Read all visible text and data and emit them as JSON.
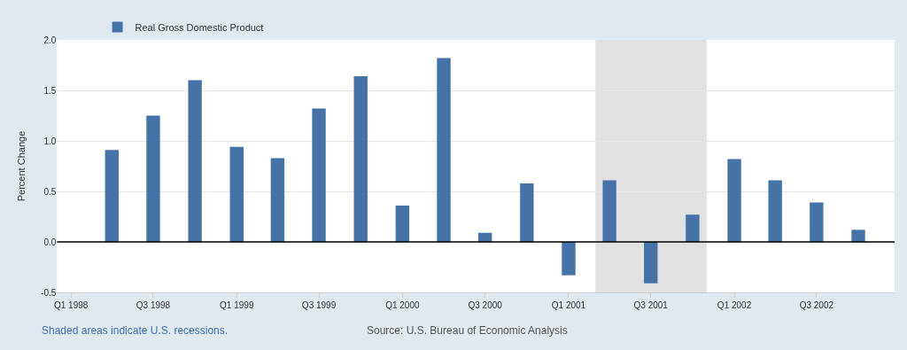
{
  "chart_data": {
    "type": "bar",
    "ylabel": "Percent Change",
    "x": [
      "1998-04-01",
      "1998-07-01",
      "1998-10-01",
      "1999-01-01",
      "1999-04-01",
      "1999-07-01",
      "1999-10-01",
      "2000-01-01",
      "2000-04-01",
      "2000-07-01",
      "2000-10-01",
      "2001-01-01",
      "2001-04-01",
      "2001-07-01",
      "2001-10-01",
      "2002-01-01",
      "2002-04-01",
      "2002-07-01",
      "2002-10-01"
    ],
    "series": [
      {
        "name": "Real Gross Domestic Product",
        "color": "#4572a7",
        "values": [
          0.91,
          1.25,
          1.6,
          0.94,
          0.83,
          1.32,
          1.64,
          0.36,
          1.82,
          0.09,
          0.58,
          -0.33,
          0.61,
          -0.41,
          0.27,
          0.82,
          0.61,
          0.39,
          0.12
        ]
      }
    ],
    "xlim": [
      "1997-12-01",
      "2002-12-20"
    ],
    "xticks": [
      {
        "value": "1998-01-01",
        "label": "Q1 1998"
      },
      {
        "value": "1998-07-01",
        "label": "Q3 1998"
      },
      {
        "value": "1999-01-01",
        "label": "Q1 1999"
      },
      {
        "value": "1999-07-01",
        "label": "Q3 1999"
      },
      {
        "value": "2000-01-01",
        "label": "Q1 2000"
      },
      {
        "value": "2000-07-01",
        "label": "Q3 2000"
      },
      {
        "value": "2001-01-01",
        "label": "Q1 2001"
      },
      {
        "value": "2001-07-01",
        "label": "Q3 2001"
      },
      {
        "value": "2002-01-01",
        "label": "Q1 2002"
      },
      {
        "value": "2002-07-01",
        "label": "Q3 2002"
      }
    ],
    "ylim": [
      -0.5,
      2.0
    ],
    "yticks": [
      {
        "value": -0.5,
        "label": "-0.5"
      },
      {
        "value": 0,
        "label": "0.0"
      },
      {
        "value": 0.5,
        "label": "0.5"
      },
      {
        "value": 1.0,
        "label": "1.0"
      },
      {
        "value": 1.5,
        "label": "1.5"
      },
      {
        "value": 2.0,
        "label": "2.0"
      }
    ],
    "grid": "y",
    "legend": "top left",
    "bands": [
      {
        "axis": "x",
        "from": "2001-03-01",
        "to": "2001-11-01",
        "color": "#e1e1e1"
      }
    ],
    "ref_lines": [
      {
        "axis": "y",
        "value": 0,
        "color": "#000000"
      }
    ],
    "annotations": [
      "Shaded areas indicate U.S. recessions.",
      "Source: U.S. Bureau of Economic Analysis"
    ]
  }
}
